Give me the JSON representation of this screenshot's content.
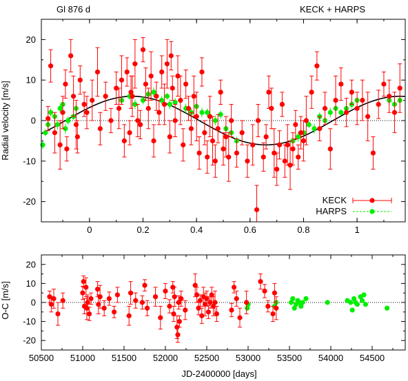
{
  "chart_data": [
    {
      "type": "scatter",
      "title_left": "Gl 876 d",
      "title_right": "KECK + HARPS",
      "xlabel": "",
      "ylabel": "Radial velocity [m/s]",
      "xlim": [
        -0.18,
        1.18
      ],
      "ylim": [
        -25,
        25
      ],
      "xticks": [
        0,
        0.2,
        0.4,
        0.6,
        0.8,
        1
      ],
      "yticks": [
        -20,
        -10,
        0,
        10,
        20
      ],
      "grid": false,
      "legend_position": "bottom-right",
      "zero_line": true,
      "model": {
        "amplitude": 6.0,
        "phase_of_max": 0.16,
        "period_in_phase": 1.0
      },
      "series": [
        {
          "name": "KECK",
          "color": "#ff0000",
          "error_typical": 4,
          "points": [
            [
              -0.155,
              0.5
            ],
            [
              -0.145,
              13.5
            ],
            [
              -0.13,
              -3
            ],
            [
              -0.11,
              -6
            ],
            [
              -0.1,
              2
            ],
            [
              -0.09,
              9
            ],
            [
              -0.085,
              -7
            ],
            [
              -0.07,
              16
            ],
            [
              -0.06,
              6
            ],
            [
              -0.05,
              -1
            ],
            [
              -0.045,
              -4
            ],
            [
              -0.035,
              10
            ],
            [
              -0.02,
              4
            ],
            [
              -0.01,
              2
            ],
            [
              0.01,
              5
            ],
            [
              0.03,
              12
            ],
            [
              0.04,
              -2
            ],
            [
              0.06,
              6
            ],
            [
              0.08,
              0
            ],
            [
              0.1,
              8
            ],
            [
              0.11,
              3
            ],
            [
              0.12,
              10
            ],
            [
              0.13,
              -5
            ],
            [
              0.14,
              12
            ],
            [
              0.15,
              -3
            ],
            [
              0.155,
              7
            ],
            [
              0.16,
              6
            ],
            [
              0.17,
              14
            ],
            [
              0.18,
              0
            ],
            [
              0.19,
              -1
            ],
            [
              0.2,
              17.5
            ],
            [
              0.21,
              9
            ],
            [
              0.22,
              3
            ],
            [
              0.23,
              11
            ],
            [
              0.24,
              -5
            ],
            [
              0.25,
              6
            ],
            [
              0.26,
              2
            ],
            [
              0.27,
              12
            ],
            [
              0.28,
              4
            ],
            [
              0.29,
              14
            ],
            [
              0.3,
              -4
            ],
            [
              0.305,
              16
            ],
            [
              0.31,
              8
            ],
            [
              0.32,
              0
            ],
            [
              0.33,
              11
            ],
            [
              0.34,
              5
            ],
            [
              0.35,
              -6
            ],
            [
              0.36,
              9
            ],
            [
              0.37,
              3
            ],
            [
              0.38,
              -2
            ],
            [
              0.39,
              6
            ],
            [
              0.4,
              1
            ],
            [
              0.41,
              -8
            ],
            [
              0.42,
              12
            ],
            [
              0.43,
              -3
            ],
            [
              0.44,
              -9
            ],
            [
              0.45,
              1
            ],
            [
              0.46,
              -5
            ],
            [
              0.47,
              -10
            ],
            [
              0.48,
              -2
            ],
            [
              0.49,
              7
            ],
            [
              0.5,
              -7
            ],
            [
              0.51,
              -4
            ],
            [
              0.52,
              -9
            ],
            [
              0.53,
              0
            ],
            [
              0.55,
              -8
            ],
            [
              0.57,
              -3
            ],
            [
              0.59,
              -10
            ],
            [
              0.61,
              -6
            ],
            [
              0.625,
              -22
            ],
            [
              0.63,
              0
            ],
            [
              0.65,
              -9
            ],
            [
              0.66,
              -4
            ],
            [
              0.67,
              7
            ],
            [
              0.68,
              3
            ],
            [
              0.69,
              -8
            ],
            [
              0.7,
              -12
            ],
            [
              0.71,
              -6
            ],
            [
              0.72,
              4
            ],
            [
              0.73,
              -10
            ],
            [
              0.74,
              -6
            ],
            [
              0.75,
              -11
            ],
            [
              0.76,
              -7
            ],
            [
              0.77,
              -1
            ],
            [
              0.78,
              -9
            ],
            [
              0.79,
              -3
            ],
            [
              0.8,
              -5
            ],
            [
              0.81,
              0
            ],
            [
              0.83,
              7
            ],
            [
              0.85,
              13.5
            ],
            [
              0.86,
              -2
            ],
            [
              0.88,
              3
            ],
            [
              0.9,
              -7
            ],
            [
              0.92,
              5
            ],
            [
              0.94,
              9
            ],
            [
              0.96,
              2
            ],
            [
              0.98,
              7
            ],
            [
              1.0,
              3
            ],
            [
              1.02,
              5
            ],
            [
              1.04,
              1
            ],
            [
              1.06,
              -8
            ],
            [
              1.08,
              4
            ],
            [
              1.1,
              9
            ],
            [
              1.12,
              6
            ],
            [
              1.14,
              2
            ],
            [
              1.16,
              8
            ]
          ]
        },
        {
          "name": "HARPS",
          "color": "#00ee00",
          "error_typical": 1,
          "points": [
            [
              -0.175,
              -6
            ],
            [
              -0.165,
              -3
            ],
            [
              -0.155,
              -1
            ],
            [
              -0.145,
              2
            ],
            [
              -0.13,
              1
            ],
            [
              -0.12,
              -1
            ],
            [
              -0.11,
              3
            ],
            [
              -0.1,
              4
            ],
            [
              -0.09,
              -2
            ],
            [
              -0.08,
              0
            ],
            [
              -0.06,
              1
            ],
            [
              -0.05,
              3
            ],
            [
              0.12,
              5
            ],
            [
              0.15,
              6
            ],
            [
              0.17,
              4
            ],
            [
              0.2,
              5
            ],
            [
              0.22,
              6.5
            ],
            [
              0.24,
              7
            ],
            [
              0.27,
              5
            ],
            [
              0.29,
              6
            ],
            [
              0.3,
              4
            ],
            [
              0.32,
              4.5
            ],
            [
              0.34,
              5
            ],
            [
              0.36,
              3
            ],
            [
              0.38,
              2
            ],
            [
              0.4,
              3.5
            ],
            [
              0.42,
              2
            ],
            [
              0.44,
              2
            ],
            [
              0.45,
              1
            ],
            [
              0.47,
              0
            ],
            [
              0.49,
              1.5
            ],
            [
              0.51,
              -2
            ],
            [
              0.53,
              -3
            ],
            [
              0.55,
              -5
            ],
            [
              0.76,
              -5
            ],
            [
              0.78,
              -4
            ],
            [
              0.8,
              -3
            ],
            [
              0.82,
              -1
            ],
            [
              0.84,
              -2
            ],
            [
              0.86,
              1
            ],
            [
              0.88,
              0
            ],
            [
              0.9,
              2
            ],
            [
              0.92,
              3
            ],
            [
              0.94,
              2
            ],
            [
              0.96,
              3
            ],
            [
              0.98,
              4
            ],
            [
              1.0,
              5
            ],
            [
              1.12,
              5
            ],
            [
              1.14,
              4
            ],
            [
              1.16,
              5
            ]
          ]
        }
      ]
    },
    {
      "type": "scatter",
      "xlabel": "JD-2400000 [days]",
      "ylabel": "O-C [m/s]",
      "xlim": [
        50500,
        54900
      ],
      "ylim": [
        -25,
        25
      ],
      "xticks": [
        50500,
        51000,
        51500,
        52000,
        52500,
        53000,
        53500,
        54000,
        54500
      ],
      "yticks": [
        -20,
        -10,
        0,
        10,
        20
      ],
      "grid": false,
      "zero_line": true,
      "series": [
        {
          "name": "KECK",
          "color": "#ff0000",
          "error_typical": 4,
          "points": [
            [
              50600,
              3
            ],
            [
              50620,
              -1
            ],
            [
              50650,
              2
            ],
            [
              50700,
              -6
            ],
            [
              50760,
              1
            ],
            [
              51000,
              5
            ],
            [
              51010,
              11
            ],
            [
              51020,
              -2
            ],
            [
              51040,
              8
            ],
            [
              51050,
              -3
            ],
            [
              51060,
              0
            ],
            [
              51080,
              -6
            ],
            [
              51100,
              2
            ],
            [
              51180,
              7
            ],
            [
              51190,
              -1
            ],
            [
              51210,
              3
            ],
            [
              51260,
              -3
            ],
            [
              51320,
              2
            ],
            [
              51380,
              -5
            ],
            [
              51420,
              4
            ],
            [
              51560,
              -7
            ],
            [
              51580,
              5
            ],
            [
              51640,
              1
            ],
            [
              51720,
              0
            ],
            [
              51750,
              9
            ],
            [
              51780,
              -3
            ],
            [
              51880,
              3
            ],
            [
              51940,
              -8
            ],
            [
              52000,
              6
            ],
            [
              52050,
              -2
            ],
            [
              52090,
              8
            ],
            [
              52100,
              -6
            ],
            [
              52110,
              3
            ],
            [
              52140,
              -13
            ],
            [
              52150,
              -17
            ],
            [
              52160,
              0
            ],
            [
              52170,
              -10
            ],
            [
              52190,
              2
            ],
            [
              52240,
              -4
            ],
            [
              52360,
              9
            ],
            [
              52380,
              4
            ],
            [
              52400,
              -3
            ],
            [
              52420,
              1
            ],
            [
              52440,
              -7
            ],
            [
              52460,
              3
            ],
            [
              52480,
              -1
            ],
            [
              52500,
              2
            ],
            [
              52520,
              -5
            ],
            [
              52540,
              0
            ],
            [
              52560,
              4
            ],
            [
              52580,
              -2
            ],
            [
              52600,
              0
            ],
            [
              52620,
              -6
            ],
            [
              52800,
              -4
            ],
            [
              52830,
              8
            ],
            [
              52860,
              2
            ],
            [
              52900,
              -8
            ],
            [
              52980,
              0
            ],
            [
              53150,
              11
            ],
            [
              53200,
              6
            ],
            [
              53240,
              -2
            ],
            [
              53300,
              -6
            ],
            [
              53320,
              5
            ],
            [
              53340,
              -3
            ]
          ]
        },
        {
          "name": "HARPS",
          "color": "#00ee00",
          "error_typical": 1,
          "points": [
            [
              52990,
              -3
            ],
            [
              53000,
              -1
            ],
            [
              53320,
              -2
            ],
            [
              53340,
              0
            ],
            [
              53520,
              0
            ],
            [
              53540,
              2
            ],
            [
              53560,
              -3
            ],
            [
              53580,
              -1
            ],
            [
              53600,
              1
            ],
            [
              53620,
              0
            ],
            [
              53640,
              -2
            ],
            [
              53660,
              0
            ],
            [
              53700,
              2
            ],
            [
              53960,
              0
            ],
            [
              54200,
              1
            ],
            [
              54240,
              0
            ],
            [
              54260,
              -4
            ],
            [
              54280,
              2
            ],
            [
              54300,
              0
            ],
            [
              54320,
              -1
            ],
            [
              54360,
              3
            ],
            [
              54380,
              1
            ],
            [
              54400,
              4
            ],
            [
              54420,
              -1
            ],
            [
              54680,
              -3
            ]
          ]
        }
      ]
    }
  ]
}
